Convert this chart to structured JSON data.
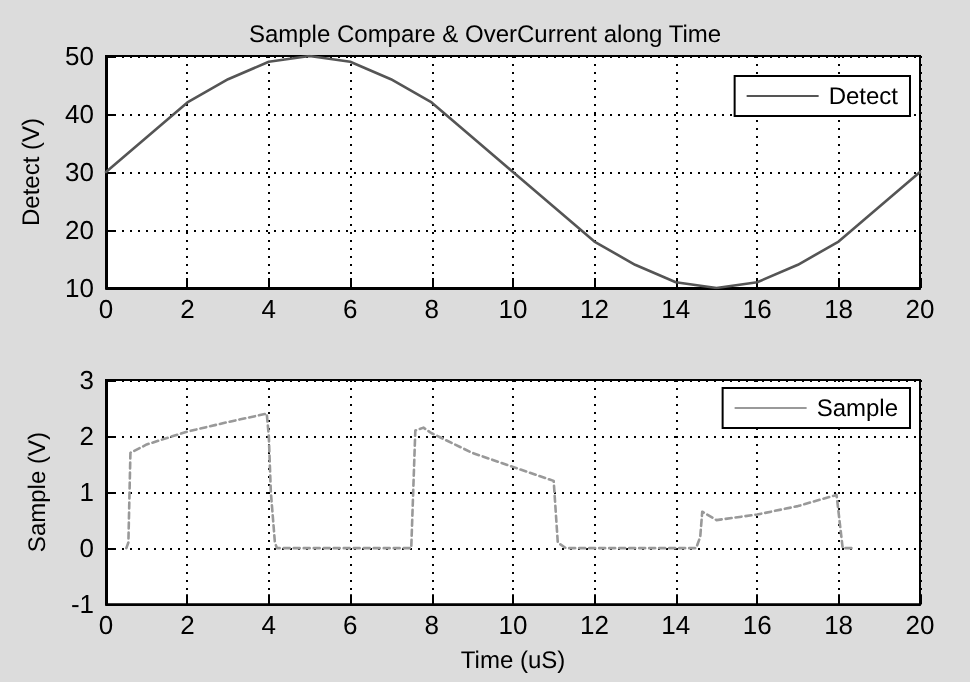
{
  "chart_data": [
    {
      "type": "line",
      "title": "Sample Compare & OverCurrent along Time",
      "ylabel": "Detect (V)",
      "x": [
        0,
        1,
        2,
        3,
        4,
        5,
        6,
        7,
        8,
        9,
        10,
        11,
        12,
        13,
        14,
        15,
        16,
        17,
        18,
        19,
        20
      ],
      "series": [
        {
          "name": "Detect",
          "color": "#555555",
          "values": [
            30,
            36,
            42,
            46,
            49,
            50,
            49,
            46,
            42,
            36,
            30,
            24,
            18,
            14,
            11,
            10,
            11,
            14,
            18,
            24,
            30
          ]
        }
      ],
      "xlim": [
        0,
        20
      ],
      "xticks": [
        0,
        2,
        4,
        6,
        8,
        10,
        12,
        14,
        16,
        18,
        20
      ],
      "ylim": [
        10,
        50
      ],
      "yticks": [
        10,
        20,
        30,
        40,
        50
      ],
      "grid": true,
      "legend": "top right",
      "line_style": "solid"
    },
    {
      "type": "line",
      "xlabel": "Time (uS)",
      "ylabel": "Sample (V)",
      "x": [
        0.5,
        0.55,
        0.6,
        1,
        2,
        3,
        3.95,
        4,
        4.05,
        4.15,
        4.2,
        7.5,
        7.6,
        7.8,
        8,
        9,
        10,
        11,
        11.1,
        11.3,
        14.5,
        14.6,
        14.65,
        15,
        16,
        17,
        17.95,
        18.1,
        18.4
      ],
      "series": [
        {
          "name": "Sample",
          "color": "#999999",
          "values": [
            0,
            0.1,
            1.7,
            1.85,
            2.08,
            2.25,
            2.4,
            2,
            1,
            0.1,
            0,
            0,
            2.1,
            2.15,
            2.05,
            1.7,
            1.45,
            1.2,
            0.1,
            0,
            0,
            0.2,
            0.65,
            0.5,
            0.6,
            0.75,
            0.95,
            0,
            0
          ]
        }
      ],
      "xlim": [
        0,
        20
      ],
      "xticks": [
        0,
        2,
        4,
        6,
        8,
        10,
        12,
        14,
        16,
        18,
        20
      ],
      "ylim": [
        -1,
        3
      ],
      "yticks": [
        -1,
        0,
        1,
        2,
        3
      ],
      "grid": true,
      "legend": "top right",
      "line_style": "dashed"
    }
  ]
}
